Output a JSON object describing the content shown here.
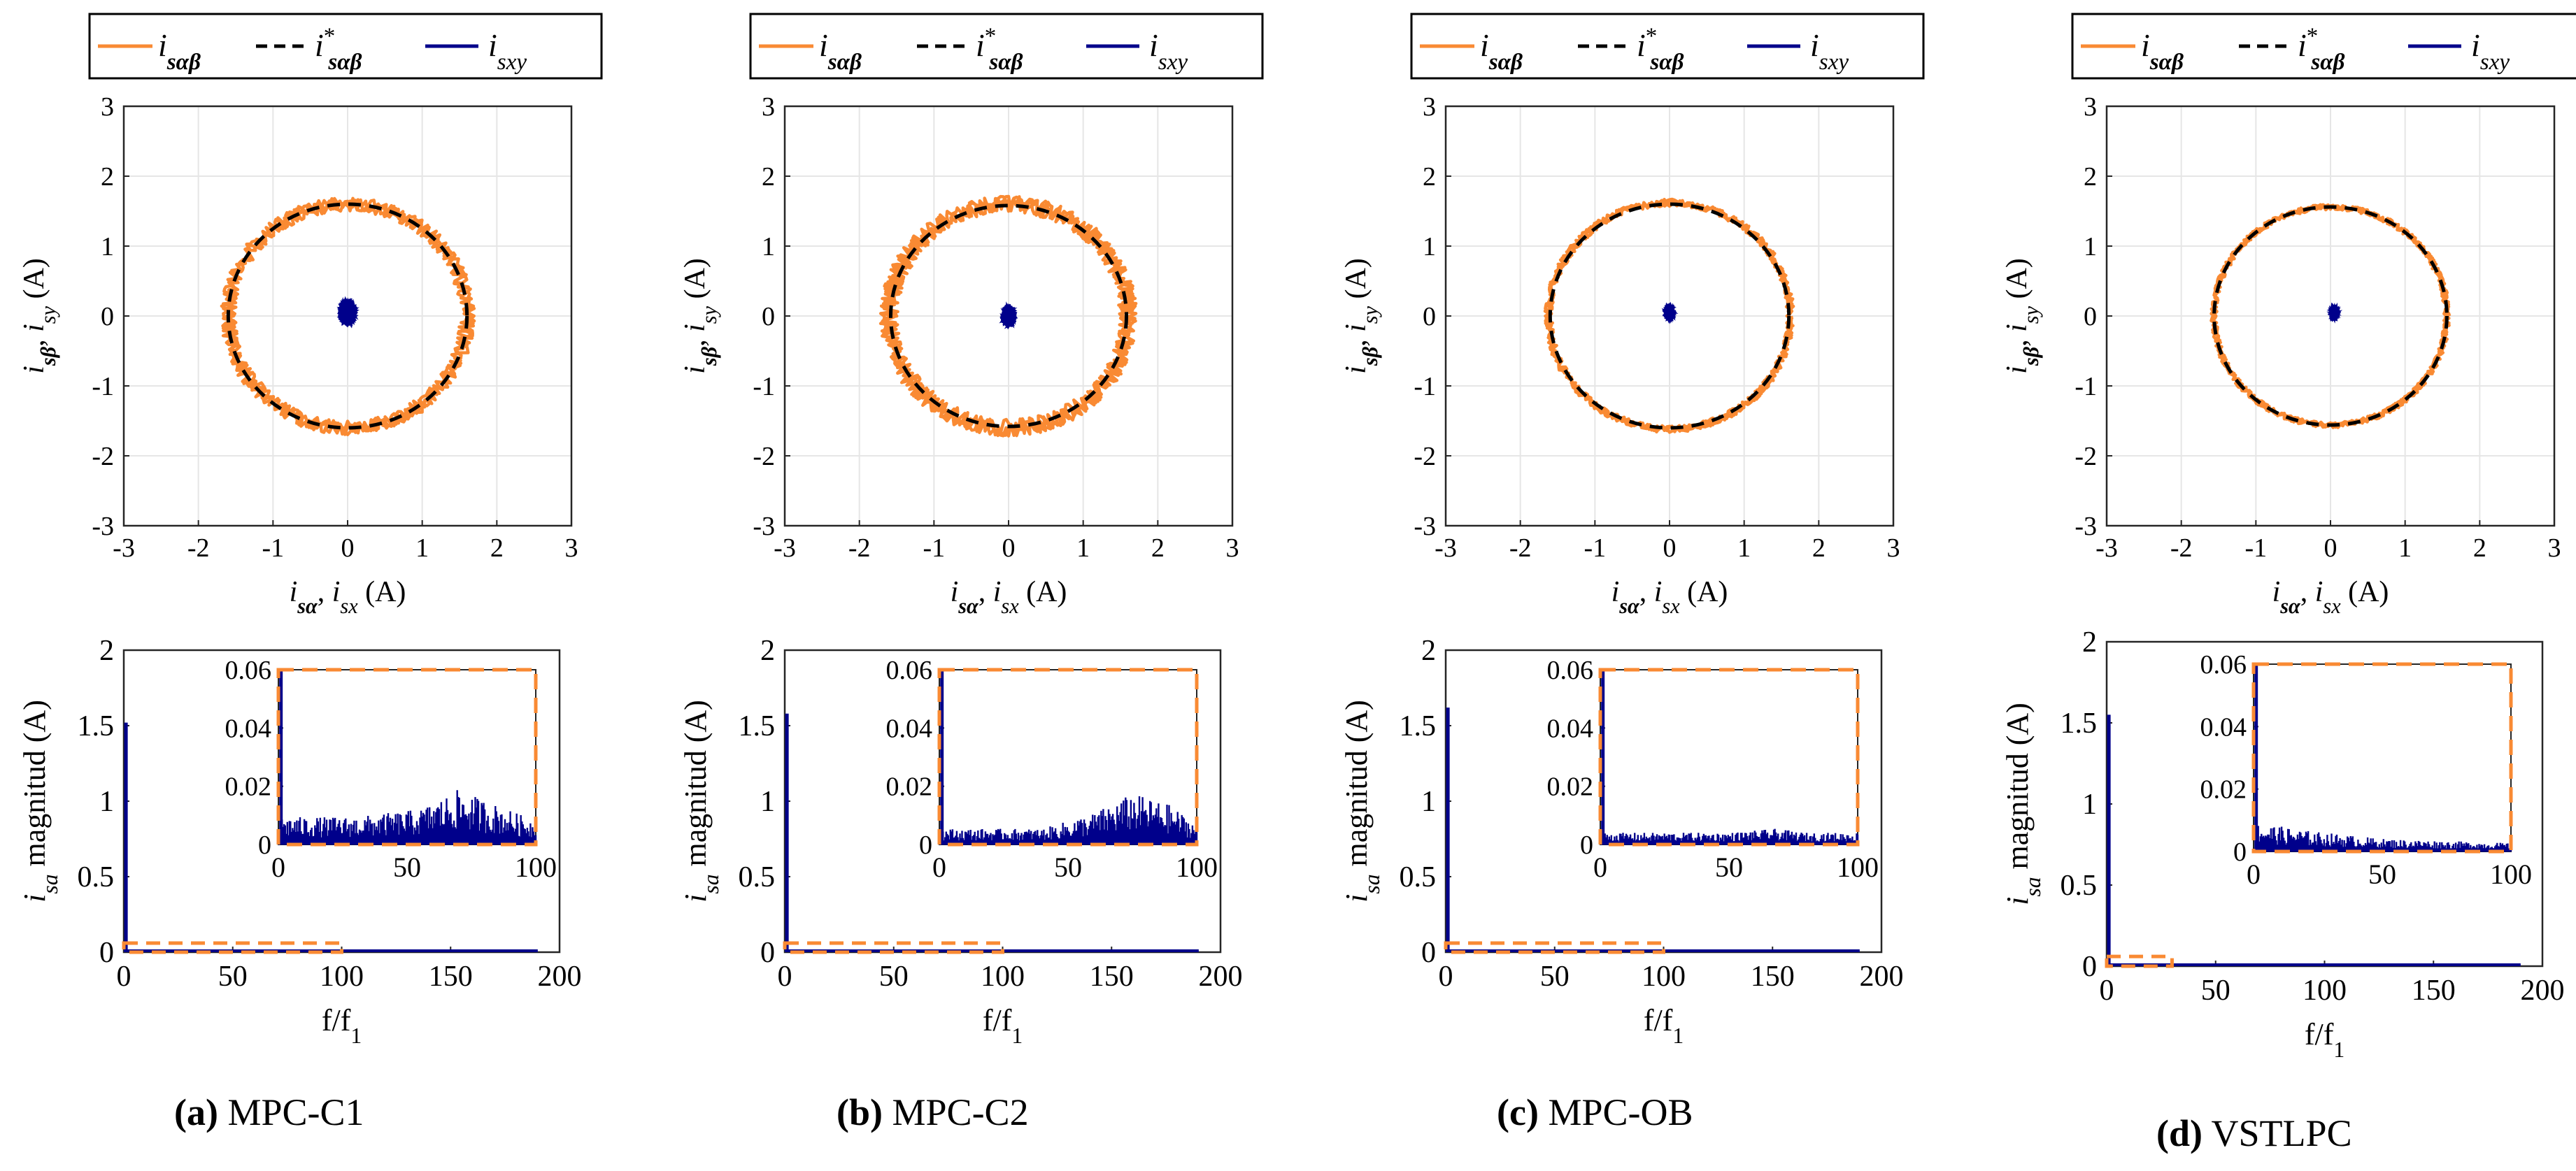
{
  "colors": {
    "orange": "#F98A33",
    "ref_dash": "#000000",
    "navy": "#00008B",
    "grid": "#E6E6E6",
    "axis": "#262626"
  },
  "legend": {
    "entries": [
      "i sαβ",
      "i* sαβ",
      "i sxy"
    ]
  },
  "chart_data": [
    {
      "type": "scatter",
      "panel": "a",
      "title": "",
      "xlabel": "i sα, i sx (A)",
      "ylabel": "i sβ, i sy (A)",
      "xlim": [
        -3,
        3
      ],
      "ylim": [
        -3,
        3
      ],
      "ticks": [
        -3,
        -2,
        -1,
        0,
        1,
        2,
        3
      ],
      "tick_labels": [
        "-3",
        "-2",
        "-1",
        "0",
        "1",
        "2",
        "3"
      ],
      "series": [
        {
          "name": "i sαβ",
          "kind": "ring",
          "radius": 1.6,
          "center": [
            0,
            0
          ],
          "ripple": 0.1
        },
        {
          "name": "i* sαβ",
          "kind": "circle",
          "radius": 1.6,
          "center": [
            0,
            0
          ]
        },
        {
          "name": "i sxy",
          "kind": "cluster",
          "radius": 0.15,
          "center": [
            0.0,
            0.05
          ]
        }
      ]
    },
    {
      "type": "scatter",
      "panel": "b",
      "xlabel": "i sα, i sx (A)",
      "ylabel": "i sβ, i sy (A)",
      "xlim": [
        -3,
        3
      ],
      "ylim": [
        -3,
        3
      ],
      "ticks": [
        -3,
        -2,
        -1,
        0,
        1,
        2,
        3
      ],
      "tick_labels": [
        "-3",
        "-2",
        "-1",
        "0",
        "1",
        "2",
        "3"
      ],
      "series": [
        {
          "name": "i sαβ",
          "kind": "ring",
          "radius": 1.6,
          "center": [
            0,
            0
          ],
          "ripple": 0.12
        },
        {
          "name": "i* sαβ",
          "kind": "circle",
          "radius": 1.58,
          "center": [
            0,
            0
          ]
        },
        {
          "name": "i sxy",
          "kind": "cluster",
          "radius": 0.12,
          "center": [
            0.0,
            0.0
          ]
        }
      ]
    },
    {
      "type": "scatter",
      "panel": "c",
      "xlabel": "i sα, i sx (A)",
      "ylabel": "i sβ, i sy (A)",
      "xlim": [
        -3,
        3
      ],
      "ylim": [
        -3,
        3
      ],
      "ticks": [
        -3,
        -2,
        -1,
        0,
        1,
        2,
        3
      ],
      "tick_labels": [
        "-3",
        "-2",
        "-1",
        "0",
        "1",
        "2",
        "3"
      ],
      "series": [
        {
          "name": "i sαβ",
          "kind": "ring",
          "radius": 1.62,
          "center": [
            0,
            0
          ],
          "ripple": 0.05
        },
        {
          "name": "i* sαβ",
          "kind": "circle",
          "radius": 1.6,
          "center": [
            0,
            0
          ]
        },
        {
          "name": "i sxy",
          "kind": "cluster",
          "radius": 0.09,
          "center": [
            0.0,
            0.05
          ]
        }
      ]
    },
    {
      "type": "scatter",
      "panel": "d",
      "xlabel": "i sα, i sx (A)",
      "ylabel": "i sβ, i sy (A)",
      "xlim": [
        -3,
        3
      ],
      "ylim": [
        -3,
        3
      ],
      "ticks": [
        -3,
        -2,
        -1,
        0,
        1,
        2,
        3
      ],
      "tick_labels": [
        "-3",
        "-2",
        "-1",
        "0",
        "1",
        "2",
        "3"
      ],
      "series": [
        {
          "name": "i sαβ",
          "kind": "ring",
          "radius": 1.56,
          "center": [
            0,
            0
          ],
          "ripple": 0.04
        },
        {
          "name": "i* sαβ",
          "kind": "circle",
          "radius": 1.56,
          "center": [
            0,
            0
          ]
        },
        {
          "name": "i sxy",
          "kind": "cluster",
          "radius": 0.08,
          "center": [
            0.05,
            0.05
          ]
        }
      ]
    },
    {
      "type": "bar",
      "panel": "a-spectrum",
      "xlabel": "f/f 1",
      "ylabel": "i sa magnitud (A)",
      "xlim": [
        0,
        200
      ],
      "ylim": [
        0,
        2
      ],
      "xticks": [
        0,
        50,
        100,
        150,
        200
      ],
      "yticks": [
        0,
        0.5,
        1,
        1.5,
        2
      ],
      "ytick_labels": [
        "0",
        "0.5",
        "1",
        "1.5",
        "2"
      ],
      "fundamental": {
        "x": 1,
        "value": 1.52
      },
      "harmonic_band": [
        0,
        190
      ],
      "zoom_box": {
        "x": [
          0,
          100
        ],
        "y": [
          0,
          0.06
        ]
      },
      "inset": {
        "xlim": [
          0,
          100
        ],
        "ylim": [
          0,
          0.06
        ],
        "xticks": [
          0,
          50,
          100
        ],
        "yticks": [
          0,
          0.02,
          0.04,
          0.06
        ],
        "ytick_labels": [
          "0",
          "0.02",
          "0.04",
          "0.06"
        ],
        "profile": [
          [
            0,
            0.007
          ],
          [
            30,
            0.007
          ],
          [
            55,
            0.009
          ],
          [
            70,
            0.014
          ],
          [
            85,
            0.01
          ],
          [
            100,
            0.006
          ]
        ]
      }
    },
    {
      "type": "bar",
      "panel": "b-spectrum",
      "xlabel": "f/f 1",
      "ylabel": "i sa magnitud (A)",
      "xlim": [
        0,
        200
      ],
      "ylim": [
        0,
        2
      ],
      "xticks": [
        0,
        50,
        100,
        150,
        200
      ],
      "yticks": [
        0,
        0.5,
        1,
        1.5,
        2
      ],
      "ytick_labels": [
        "0",
        "0.5",
        "1",
        "1.5",
        "2"
      ],
      "fundamental": {
        "x": 1,
        "value": 1.58
      },
      "harmonic_band": [
        0,
        190
      ],
      "zoom_box": {
        "x": [
          0,
          100
        ],
        "y": [
          0,
          0.06
        ]
      },
      "inset": {
        "xlim": [
          0,
          100
        ],
        "ylim": [
          0,
          0.06
        ],
        "xticks": [
          0,
          50,
          100
        ],
        "yticks": [
          0,
          0.02,
          0.04,
          0.06
        ],
        "ytick_labels": [
          "0",
          "0.02",
          "0.04",
          "0.06"
        ],
        "profile": [
          [
            0,
            0.004
          ],
          [
            40,
            0.004
          ],
          [
            60,
            0.008
          ],
          [
            75,
            0.013
          ],
          [
            90,
            0.01
          ],
          [
            100,
            0.005
          ]
        ]
      }
    },
    {
      "type": "bar",
      "panel": "c-spectrum",
      "xlabel": "f/f 1",
      "ylabel": "i sa magnitud (A)",
      "xlim": [
        0,
        200
      ],
      "ylim": [
        0,
        2
      ],
      "xticks": [
        0,
        50,
        100,
        150,
        200
      ],
      "yticks": [
        0,
        0.5,
        1,
        1.5,
        2
      ],
      "ytick_labels": [
        "0",
        "0.5",
        "1",
        "1.5",
        "2"
      ],
      "fundamental": {
        "x": 1,
        "value": 1.62
      },
      "harmonic_band": [
        0,
        190
      ],
      "zoom_box": {
        "x": [
          0,
          100
        ],
        "y": [
          0,
          0.06
        ]
      },
      "inset": {
        "xlim": [
          0,
          100
        ],
        "ylim": [
          0,
          0.06
        ],
        "xticks": [
          0,
          50,
          100
        ],
        "yticks": [
          0,
          0.02,
          0.04,
          0.06
        ],
        "ytick_labels": [
          "0",
          "0.02",
          "0.04",
          "0.06"
        ],
        "profile": [
          [
            0,
            0.003
          ],
          [
            50,
            0.003
          ],
          [
            68,
            0.004
          ],
          [
            80,
            0.003
          ],
          [
            100,
            0.003
          ]
        ]
      }
    },
    {
      "type": "bar",
      "panel": "d-spectrum",
      "xlabel": "f/f 1",
      "ylabel": "i sa magnitud (A)",
      "xlim": [
        0,
        200
      ],
      "ylim": [
        0,
        2
      ],
      "xticks": [
        0,
        50,
        100,
        150,
        200
      ],
      "yticks": [
        0,
        0.5,
        1,
        1.5,
        2
      ],
      "ytick_labels": [
        "0",
        "0.5",
        "1",
        "1.5",
        "2"
      ],
      "fundamental": {
        "x": 1,
        "value": 1.55
      },
      "harmonic_band": [
        0,
        190
      ],
      "zoom_box": {
        "x": [
          0,
          30
        ],
        "y": [
          0,
          0.06
        ]
      },
      "inset": {
        "xlim": [
          0,
          100
        ],
        "ylim": [
          0,
          0.06
        ],
        "xticks": [
          0,
          50,
          100
        ],
        "yticks": [
          0,
          0.02,
          0.04,
          0.06
        ],
        "ytick_labels": [
          "0",
          "0.02",
          "0.04",
          "0.06"
        ],
        "profile": [
          [
            0,
            0.007
          ],
          [
            20,
            0.005
          ],
          [
            50,
            0.003
          ],
          [
            100,
            0.002
          ]
        ]
      }
    }
  ],
  "captions": [
    {
      "letter": "(a)",
      "text": "MPC-C1"
    },
    {
      "letter": "(b)",
      "text": "MPC-C2"
    },
    {
      "letter": "(c)",
      "text": "MPC-OB"
    },
    {
      "letter": "(d)",
      "text": "VSTLPC"
    }
  ]
}
